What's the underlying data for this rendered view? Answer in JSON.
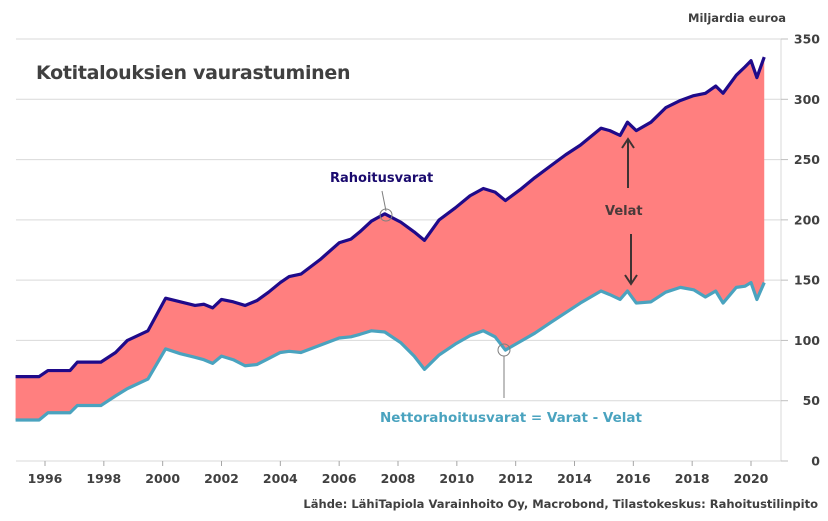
{
  "chart_data": {
    "type": "area",
    "title": "Kotitalouksien vaurastuminen",
    "ylabel": "Miljardia euroa",
    "xlabel": "",
    "ylim": [
      0,
      350
    ],
    "xlim": [
      1995,
      2021.3
    ],
    "y_ticks": [
      0,
      50,
      100,
      150,
      200,
      250,
      300,
      350
    ],
    "x_ticks": [
      1996,
      1998,
      2000,
      2002,
      2004,
      2006,
      2008,
      2010,
      2012,
      2014,
      2016,
      2018,
      2020
    ],
    "y_axis_position": "right",
    "grid": true,
    "colors": {
      "assets_line": "#1f0a8a",
      "net_line": "#4aa3bf",
      "debt_fill": "#ff7f7f",
      "text": "#404040"
    },
    "series": [
      {
        "name": "Rahoitusvarat",
        "x": [
          1995.0,
          1995.8,
          1996.1,
          1996.85,
          1997.1,
          1997.9,
          1998.4,
          1998.8,
          1999.5,
          2000.1,
          2000.6,
          2001.1,
          2001.4,
          2001.7,
          2002.0,
          2002.4,
          2002.8,
          2003.2,
          2003.6,
          2004.0,
          2004.3,
          2004.7,
          2005.35,
          2006.0,
          2006.4,
          2006.7,
          2007.1,
          2007.55,
          2008.1,
          2008.55,
          2008.9,
          2009.4,
          2009.95,
          2010.45,
          2010.9,
          2011.3,
          2011.65,
          2012.15,
          2012.65,
          2013.2,
          2013.7,
          2014.2,
          2014.9,
          2015.2,
          2015.55,
          2015.8,
          2016.1,
          2016.6,
          2017.1,
          2017.6,
          2018.05,
          2018.45,
          2018.8,
          2019.05,
          2019.5,
          2019.8,
          2020.0,
          2020.2,
          2020.45
        ],
        "values": [
          70,
          70,
          75,
          75,
          82,
          82,
          90,
          100,
          108,
          135,
          132,
          129,
          130,
          127,
          134,
          132,
          129,
          133,
          140,
          148,
          153,
          155,
          167,
          181,
          184,
          190,
          199,
          205,
          198,
          190,
          183,
          200,
          210,
          220,
          226,
          223,
          216,
          225,
          235,
          245,
          254,
          262,
          276,
          274,
          270,
          281,
          274,
          281,
          293,
          299,
          303,
          305,
          311,
          305,
          320,
          327,
          332,
          318,
          335
        ]
      },
      {
        "name": "Nettorahoitusvarat",
        "x": [
          1995.0,
          1995.8,
          1996.1,
          1996.85,
          1997.1,
          1997.9,
          1998.4,
          1998.8,
          1999.5,
          2000.1,
          2000.6,
          2001.1,
          2001.4,
          2001.7,
          2002.0,
          2002.4,
          2002.8,
          2003.2,
          2003.6,
          2004.0,
          2004.3,
          2004.7,
          2005.35,
          2006.0,
          2006.4,
          2006.7,
          2007.1,
          2007.55,
          2008.1,
          2008.55,
          2008.9,
          2009.4,
          2009.95,
          2010.45,
          2010.9,
          2011.3,
          2011.65,
          2012.15,
          2012.65,
          2013.2,
          2013.7,
          2014.2,
          2014.9,
          2015.2,
          2015.55,
          2015.8,
          2016.1,
          2016.6,
          2017.1,
          2017.6,
          2018.05,
          2018.45,
          2018.8,
          2019.05,
          2019.5,
          2019.8,
          2020.0,
          2020.2,
          2020.45
        ],
        "values": [
          34,
          34,
          40,
          40,
          46,
          46,
          54,
          60,
          68,
          93,
          89,
          86,
          84,
          81,
          87,
          84,
          79,
          80,
          85,
          90,
          91,
          90,
          96,
          102,
          103,
          105,
          108,
          107,
          98,
          87,
          76,
          88,
          97,
          104,
          108,
          103,
          92,
          99,
          106,
          115,
          123,
          131,
          141,
          138,
          134,
          141,
          131,
          132,
          140,
          144,
          142,
          136,
          141,
          131,
          144,
          145,
          148,
          134,
          148
        ]
      }
    ],
    "annotations": {
      "assets_label": "Rahoitusvarat",
      "debt_label": "Velat",
      "net_label": "Nettorahoitusvarat = Varat - Velat"
    },
    "source": "Lähde: LähiTapiola Varainhoito Oy, Macrobond, Tilastokeskus: Rahoitustilinpito"
  }
}
